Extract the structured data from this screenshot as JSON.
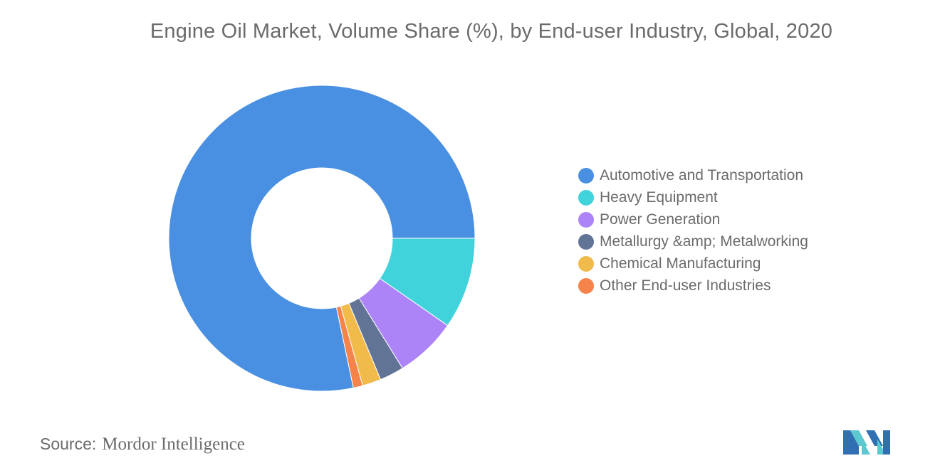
{
  "chart_data": {
    "type": "pie",
    "title": "Engine Oil Market, Volume Share (%), by End-user Industry, Global, 2020",
    "donut": true,
    "legend_position": "right",
    "slices": [
      {
        "name": "Automotive and Transportation",
        "value": 79.4,
        "color": "#4a90e2"
      },
      {
        "name": "Heavy Equipment",
        "value": 9.8,
        "color": "#41d3dc"
      },
      {
        "name": "Power Generation",
        "value": 6.6,
        "color": "#ad84f8"
      },
      {
        "name": "Metallurgy &amp; Metalworking",
        "value": 2.6,
        "color": "#617496"
      },
      {
        "name": "Chemical Manufacturing",
        "value": 2.0,
        "color": "#f0bb4a"
      },
      {
        "name": "Other End-user Industries",
        "value": 1.0,
        "color": "#f5834a"
      }
    ]
  },
  "source": {
    "label": "Source:",
    "value": "Mordor Intelligence"
  },
  "logo": {
    "icon": "mordor-intelligence-logo",
    "colors": [
      "#2f6fb2",
      "#5cc8cf"
    ]
  }
}
